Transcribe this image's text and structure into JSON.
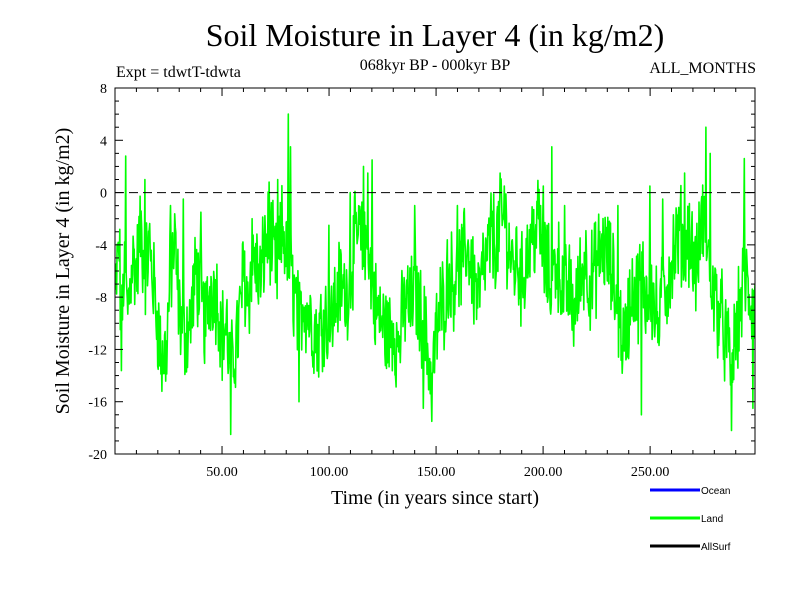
{
  "chart_data": {
    "type": "line",
    "title": "Soil Moisture in Layer 4 (in kg/m2)",
    "subtitle_left": "Expt = tdwtT-tdwta",
    "subtitle_center": "068kyr BP - 000kyr BP",
    "subtitle_right": "ALL_MONTHS",
    "xlabel": "Time (in years since start)",
    "ylabel": "Soil Moisture in Layer 4 (in kg/m2)",
    "xlim": [
      0,
      299
    ],
    "ylim": [
      -20,
      8
    ],
    "x_ticks": [
      50,
      100,
      150,
      200,
      250
    ],
    "x_tick_labels": [
      "50.00",
      "100.00",
      "150.00",
      "200.00",
      "250.00"
    ],
    "y_ticks": [
      8,
      4,
      0,
      -4,
      -8,
      -12,
      -16,
      -20
    ],
    "y_tick_labels": [
      "8",
      "4",
      "0",
      "-4",
      "-8",
      "-12",
      "-16",
      "-20"
    ],
    "reference_line": {
      "y": 0,
      "style": "dashed"
    },
    "series": [
      {
        "name": "Land",
        "color": "#00ff00",
        "anchors": [
          [
            0,
            -8
          ],
          [
            2,
            -4
          ],
          [
            3,
            -12
          ],
          [
            4,
            -6
          ],
          [
            6,
            -9
          ],
          [
            8,
            -5
          ],
          [
            10,
            -6
          ],
          [
            12,
            -3
          ],
          [
            14,
            -6
          ],
          [
            16,
            -4
          ],
          [
            18,
            -7
          ],
          [
            20,
            -10
          ],
          [
            22,
            -13
          ],
          [
            24,
            -12
          ],
          [
            26,
            -6
          ],
          [
            28,
            -4
          ],
          [
            30,
            -9
          ],
          [
            32,
            -11
          ],
          [
            35,
            -10
          ],
          [
            38,
            -6
          ],
          [
            40,
            -8
          ],
          [
            42,
            -10
          ],
          [
            45,
            -7
          ],
          [
            48,
            -8
          ],
          [
            50,
            -11
          ],
          [
            52,
            -10
          ],
          [
            54,
            -14
          ],
          [
            56,
            -12
          ],
          [
            58,
            -10
          ],
          [
            60,
            -6
          ],
          [
            62,
            -8
          ],
          [
            65,
            -5
          ],
          [
            68,
            -7
          ],
          [
            70,
            -4
          ],
          [
            72,
            -3
          ],
          [
            74,
            -5
          ],
          [
            76,
            -6
          ],
          [
            78,
            -3
          ],
          [
            80,
            -4
          ],
          [
            82,
            -6
          ],
          [
            84,
            -8
          ],
          [
            86,
            -10
          ],
          [
            88,
            -8
          ],
          [
            90,
            -9
          ],
          [
            92,
            -10
          ],
          [
            95,
            -11
          ],
          [
            98,
            -9
          ],
          [
            100,
            -11
          ],
          [
            102,
            -9
          ],
          [
            105,
            -7
          ],
          [
            108,
            -8
          ],
          [
            110,
            -6
          ],
          [
            112,
            -4
          ],
          [
            114,
            -3
          ],
          [
            116,
            -5
          ],
          [
            118,
            -4
          ],
          [
            120,
            -7
          ],
          [
            122,
            -9
          ],
          [
            125,
            -10
          ],
          [
            128,
            -11
          ],
          [
            130,
            -10
          ],
          [
            132,
            -12
          ],
          [
            134,
            -10
          ],
          [
            136,
            -8
          ],
          [
            138,
            -9
          ],
          [
            140,
            -7
          ],
          [
            142,
            -9
          ],
          [
            144,
            -10
          ],
          [
            146,
            -12
          ],
          [
            148,
            -14
          ],
          [
            150,
            -11
          ],
          [
            152,
            -9
          ],
          [
            154,
            -8
          ],
          [
            156,
            -6
          ],
          [
            158,
            -7
          ],
          [
            160,
            -5
          ],
          [
            162,
            -6
          ],
          [
            164,
            -4
          ],
          [
            166,
            -5
          ],
          [
            168,
            -7
          ],
          [
            170,
            -8
          ],
          [
            172,
            -6
          ],
          [
            174,
            -5
          ],
          [
            176,
            -3
          ],
          [
            178,
            -4
          ],
          [
            180,
            -3
          ],
          [
            182,
            -2
          ],
          [
            184,
            -4
          ],
          [
            186,
            -6
          ],
          [
            188,
            -5
          ],
          [
            190,
            -7
          ],
          [
            192,
            -5
          ],
          [
            194,
            -4
          ],
          [
            196,
            -3
          ],
          [
            198,
            -2
          ],
          [
            200,
            -5
          ],
          [
            202,
            -6
          ],
          [
            204,
            -7
          ],
          [
            206,
            -5
          ],
          [
            208,
            -6
          ],
          [
            210,
            -8
          ],
          [
            212,
            -7
          ],
          [
            214,
            -9
          ],
          [
            216,
            -8
          ],
          [
            218,
            -6
          ],
          [
            220,
            -5
          ],
          [
            222,
            -7
          ],
          [
            224,
            -6
          ],
          [
            226,
            -5
          ],
          [
            228,
            -4
          ],
          [
            230,
            -5
          ],
          [
            232,
            -6
          ],
          [
            234,
            -8
          ],
          [
            236,
            -10
          ],
          [
            238,
            -12
          ],
          [
            240,
            -9
          ],
          [
            242,
            -7
          ],
          [
            244,
            -8
          ],
          [
            246,
            -6
          ],
          [
            248,
            -8
          ],
          [
            250,
            -7
          ],
          [
            252,
            -9
          ],
          [
            254,
            -10
          ],
          [
            256,
            -8
          ],
          [
            258,
            -7
          ],
          [
            260,
            -5
          ],
          [
            262,
            -4
          ],
          [
            264,
            -3
          ],
          [
            266,
            -4
          ],
          [
            268,
            -3
          ],
          [
            270,
            -5
          ],
          [
            272,
            -6
          ],
          [
            274,
            -2
          ],
          [
            276,
            -3
          ],
          [
            278,
            -6
          ],
          [
            280,
            -8
          ],
          [
            282,
            -9
          ],
          [
            284,
            -10
          ],
          [
            286,
            -12
          ],
          [
            288,
            -13
          ],
          [
            290,
            -11
          ],
          [
            292,
            -9
          ],
          [
            294,
            -6
          ],
          [
            296,
            -8
          ],
          [
            299,
            -9
          ]
        ],
        "peaks": [
          [
            5,
            2.8
          ],
          [
            14,
            1.0
          ],
          [
            26,
            -1.0
          ],
          [
            32,
            -0.5
          ],
          [
            40,
            -1.5
          ],
          [
            54,
            -18.5
          ],
          [
            64,
            -2.0
          ],
          [
            72,
            0.8
          ],
          [
            76,
            1.0
          ],
          [
            81,
            6.0
          ],
          [
            82,
            3.5
          ],
          [
            86,
            -16.0
          ],
          [
            100,
            -2.5
          ],
          [
            110,
            0.0
          ],
          [
            116,
            2.0
          ],
          [
            118,
            1.5
          ],
          [
            120,
            2.5
          ],
          [
            140,
            -1.0
          ],
          [
            144,
            -16.5
          ],
          [
            148,
            -17.5
          ],
          [
            160,
            -1.0
          ],
          [
            180,
            1.5
          ],
          [
            182,
            0.5
          ],
          [
            200,
            0.5
          ],
          [
            204,
            3.5
          ],
          [
            210,
            -1.0
          ],
          [
            235,
            -1.0
          ],
          [
            246,
            -17.0
          ],
          [
            250,
            0.5
          ],
          [
            256,
            -0.5
          ],
          [
            266,
            1.5
          ],
          [
            276,
            5.0
          ],
          [
            278,
            3.0
          ],
          [
            288,
            -18.2
          ],
          [
            294,
            2.6
          ],
          [
            298,
            -16.5
          ]
        ],
        "noise_amplitude": 3.2
      },
      {
        "name": "Ocean",
        "color": "#0000ff"
      },
      {
        "name": "AllSurf",
        "color": "#000000"
      }
    ],
    "legend": {
      "placement": "bottom-right",
      "entries": [
        {
          "label": "Ocean",
          "color": "#0000ff"
        },
        {
          "label": "Land",
          "color": "#00ff00"
        },
        {
          "label": "AllSurf",
          "color": "#000000"
        }
      ]
    }
  }
}
